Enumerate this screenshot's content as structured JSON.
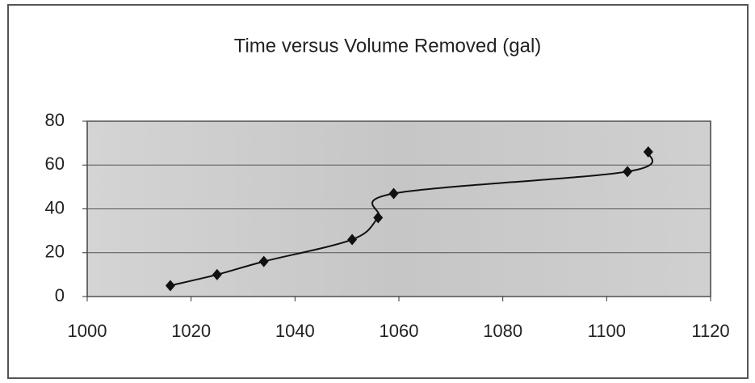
{
  "chart_data": {
    "type": "scatter",
    "title": "Time versus Volume Removed (gal)",
    "x": [
      1016,
      1025,
      1034,
      1051,
      1056,
      1059,
      1104,
      1108
    ],
    "values": [
      5,
      10,
      16,
      26,
      36,
      47,
      57,
      66
    ],
    "color": "#111111",
    "smooth": true,
    "xlim": [
      1000,
      1120
    ],
    "xticks": [
      1000,
      1020,
      1040,
      1060,
      1080,
      1100,
      1120
    ],
    "ylim": [
      0,
      80
    ],
    "yticks": [
      0,
      20,
      40,
      60,
      80
    ],
    "grid": true
  }
}
